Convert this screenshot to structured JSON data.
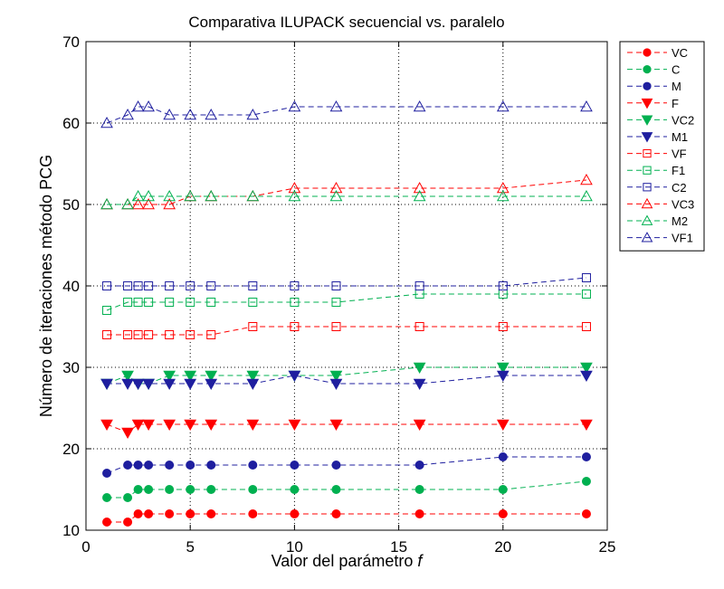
{
  "chart_data": {
    "type": "line",
    "title": "Comparativa ILUPACK secuencial vs. paralelo",
    "xlabel": "Valor del parámetro ",
    "xlabel_italic": "f",
    "ylabel": "Número de iteraciones método PCG",
    "xlim": [
      0,
      25
    ],
    "ylim": [
      10,
      70
    ],
    "xticks": [
      0,
      5,
      10,
      15,
      20,
      25
    ],
    "yticks": [
      10,
      20,
      30,
      40,
      50,
      60,
      70
    ],
    "grid": true,
    "legend_position": "outside-right",
    "x": [
      1,
      2,
      2.5,
      3,
      4,
      5,
      6,
      8,
      10,
      12,
      16,
      20,
      24
    ],
    "series": [
      {
        "name": "VC",
        "color": "#ff0000",
        "marker": "circle-filled",
        "values": [
          11,
          11,
          12,
          12,
          12,
          12,
          12,
          12,
          12,
          12,
          12,
          12,
          12
        ]
      },
      {
        "name": "C",
        "color": "#00b050",
        "marker": "circle-filled",
        "values": [
          14,
          14,
          15,
          15,
          15,
          15,
          15,
          15,
          15,
          15,
          15,
          15,
          16
        ]
      },
      {
        "name": "M",
        "color": "#1f1f9f",
        "marker": "circle-filled",
        "values": [
          17,
          18,
          18,
          18,
          18,
          18,
          18,
          18,
          18,
          18,
          18,
          19,
          19
        ]
      },
      {
        "name": "F",
        "color": "#ff0000",
        "marker": "tri-down-filled",
        "values": [
          23,
          22,
          23,
          23,
          23,
          23,
          23,
          23,
          23,
          23,
          23,
          23,
          23
        ]
      },
      {
        "name": "VC2",
        "color": "#00b050",
        "marker": "tri-down-filled",
        "values": [
          28,
          29,
          28,
          28,
          29,
          29,
          29,
          29,
          29,
          29,
          30,
          30,
          30
        ]
      },
      {
        "name": "M1",
        "color": "#1f1f9f",
        "marker": "tri-down-filled",
        "values": [
          28,
          28,
          28,
          28,
          28,
          28,
          28,
          28,
          29,
          28,
          28,
          29,
          29
        ]
      },
      {
        "name": "VF",
        "color": "#ff0000",
        "marker": "square-open",
        "values": [
          34,
          34,
          34,
          34,
          34,
          34,
          34,
          35,
          35,
          35,
          35,
          35,
          35
        ]
      },
      {
        "name": "F1",
        "color": "#00b050",
        "marker": "square-open",
        "values": [
          37,
          38,
          38,
          38,
          38,
          38,
          38,
          38,
          38,
          38,
          39,
          39,
          39
        ]
      },
      {
        "name": "C2",
        "color": "#1f1f9f",
        "marker": "square-open",
        "values": [
          40,
          40,
          40,
          40,
          40,
          40,
          40,
          40,
          40,
          40,
          40,
          40,
          41
        ]
      },
      {
        "name": "VC3",
        "color": "#ff0000",
        "marker": "tri-up-open",
        "values": [
          50,
          50,
          50,
          50,
          50,
          51,
          51,
          51,
          52,
          52,
          52,
          52,
          53
        ]
      },
      {
        "name": "M2",
        "color": "#00b050",
        "marker": "tri-up-open",
        "values": [
          50,
          50,
          51,
          51,
          51,
          51,
          51,
          51,
          51,
          51,
          51,
          51,
          51
        ]
      },
      {
        "name": "VF1",
        "color": "#1f1f9f",
        "marker": "tri-up-open",
        "values": [
          60,
          61,
          62,
          62,
          61,
          61,
          61,
          61,
          62,
          62,
          62,
          62,
          62
        ]
      }
    ]
  }
}
